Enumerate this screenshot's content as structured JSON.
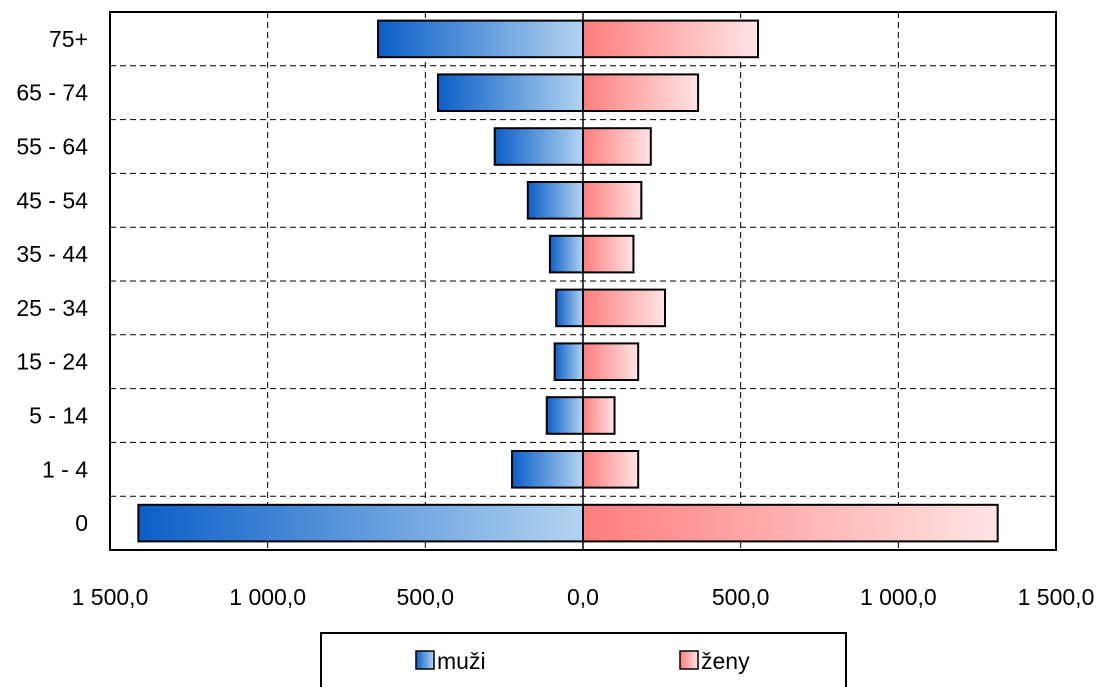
{
  "chart_data": {
    "type": "bar",
    "orientation": "horizontal",
    "layout": "population-pyramid",
    "categories": [
      "75+",
      "65 - 74",
      "55 - 64",
      "45 - 54",
      "35 - 44",
      "25 - 34",
      "15 - 24",
      "5 - 14",
      "1 - 4",
      "0"
    ],
    "series": [
      {
        "name": "muži",
        "side": "left",
        "values": [
          650,
          460,
          280,
          175,
          105,
          85,
          90,
          115,
          225,
          1410
        ]
      },
      {
        "name": "ženy",
        "side": "right",
        "values": [
          555,
          365,
          215,
          185,
          160,
          260,
          175,
          100,
          175,
          1315
        ]
      }
    ],
    "x_tick_labels": [
      "1 500,0",
      "1 000,0",
      "500,0",
      "0,0",
      "500,0",
      "1 000,0",
      "1 500,0"
    ],
    "x_ticks": [
      -1500,
      -1000,
      -500,
      0,
      500,
      1000,
      1500
    ],
    "xlim": [
      -1500,
      1500
    ],
    "grid": true,
    "legend_position": "bottom",
    "colors": {
      "muzi_dark": "#0b5fc8",
      "muzi_light": "#b3d4f0",
      "zeny_dark": "#ff7d7d",
      "zeny_light": "#ffe4e4",
      "grid": "#000000",
      "outline": "#000000"
    }
  }
}
